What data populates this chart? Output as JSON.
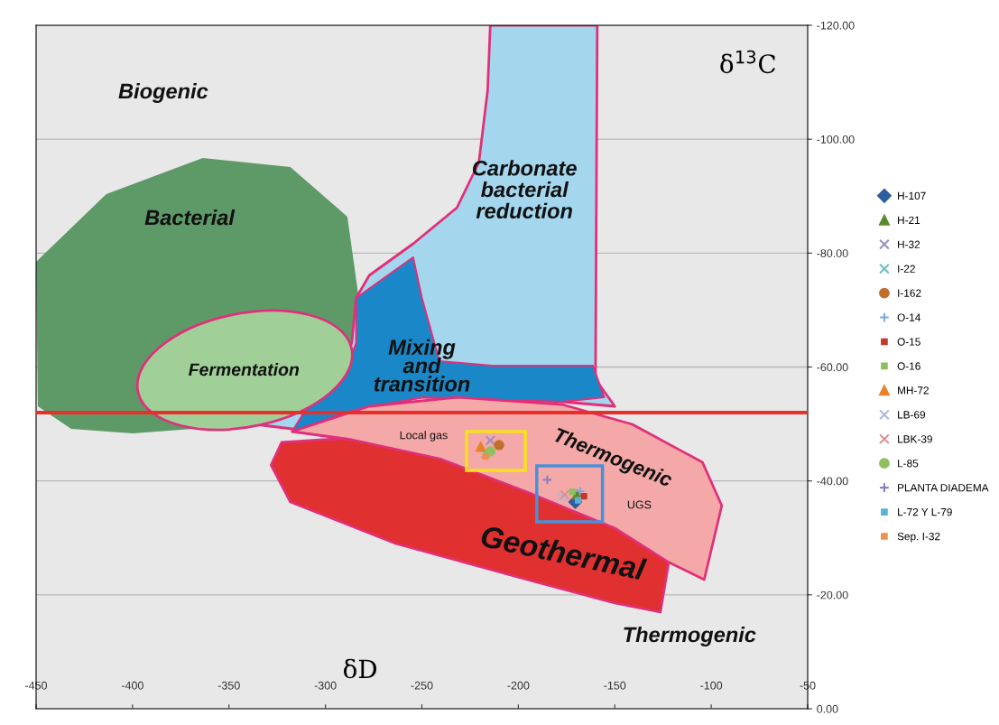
{
  "chart_data": {
    "type": "scatter",
    "xlabel": "δD",
    "ylabel": "δ$^{13}$C",
    "xlim": [
      -450,
      -50
    ],
    "xticks": [
      -450,
      -400,
      -350,
      -300,
      -250,
      -200,
      -150,
      -100,
      -50
    ],
    "ylim": [
      0,
      -120
    ],
    "yticks": [
      {
        "value": -120,
        "label": "-120.00"
      },
      {
        "value": -100,
        "label": "-100.00"
      },
      {
        "value": -80,
        "label": "-80.00"
      },
      {
        "value": -60,
        "label": "-60.00"
      },
      {
        "value": -40,
        "label": "-40.00"
      },
      {
        "value": -20,
        "label": "-20.00"
      },
      {
        "value": 0,
        "label": "0.00"
      }
    ],
    "grid": "y",
    "legend": "right",
    "ref_lines": [
      {
        "axis": "y",
        "value": -52,
        "color": "#e8302a"
      }
    ],
    "series": [
      {
        "name": "H-107",
        "color": "#2e5e9e",
        "marker": "diamond",
        "x": [
          -170.5
        ],
        "values": [
          -36.3
        ]
      },
      {
        "name": "H-21",
        "color": "#5b8a2e",
        "marker": "triangle",
        "x": [
          -169.5
        ],
        "values": [
          -37.6
        ]
      },
      {
        "name": "H-32",
        "color": "#9b8fc4",
        "marker": "cross",
        "x": [
          -214.5
        ],
        "values": [
          -47.1
        ]
      },
      {
        "name": "I-22",
        "color": "#6cc0c0",
        "marker": "cross",
        "x": [
          -217
        ],
        "values": [
          -44.8
        ]
      },
      {
        "name": "I-162",
        "color": "#c0702a",
        "marker": "circle",
        "x": [
          -210
        ],
        "values": [
          -46.3
        ]
      },
      {
        "name": "O-14",
        "color": "#7fa8d8",
        "marker": "plus",
        "x": [
          -168
        ],
        "values": [
          -38.2
        ]
      },
      {
        "name": "O-15",
        "color": "#c0392b",
        "marker": "square",
        "x": [
          -166
        ],
        "values": [
          -37.3
        ]
      },
      {
        "name": "O-16",
        "color": "#8fbf5a",
        "marker": "square",
        "x": [
          -172
        ],
        "values": [
          -38.1
        ]
      },
      {
        "name": "MH-72",
        "color": "#e8832a",
        "marker": "triangle",
        "x": [
          -219.5
        ],
        "values": [
          -46
        ]
      },
      {
        "name": "LB-69",
        "color": "#a8b8e0",
        "marker": "cross",
        "x": [
          -177
        ],
        "values": [
          -37.2
        ]
      },
      {
        "name": "LBK-39",
        "color": "#e09090",
        "marker": "cross",
        "x": [
          -176
        ],
        "values": [
          -37.6
        ]
      },
      {
        "name": "L-85",
        "color": "#8fc060",
        "marker": "circle",
        "x": [
          -214.5
        ],
        "values": [
          -45.2
        ]
      },
      {
        "name": "PLANTA DIADEMA",
        "color": "#8a7fc0",
        "marker": "plus",
        "x": [
          -185
        ],
        "values": [
          -40.2
        ]
      },
      {
        "name": "L-72 Y L-79",
        "color": "#5ab0d8",
        "marker": "square",
        "x": [
          -169
        ],
        "values": [
          -36.6
        ]
      },
      {
        "name": "Sep. I-32",
        "color": "#f0904a",
        "marker": "square",
        "x": [
          -217
        ],
        "values": [
          -44.3
        ]
      }
    ],
    "annotations": [
      "Biogenic",
      "Bacterial",
      "Carbonate\nbacterial\nreduction",
      "Fermentation",
      "Mixing\nand\ntransition",
      "Thermogenic",
      "Geothermal",
      "Thermogenic",
      "Local gas",
      "UGS"
    ]
  }
}
